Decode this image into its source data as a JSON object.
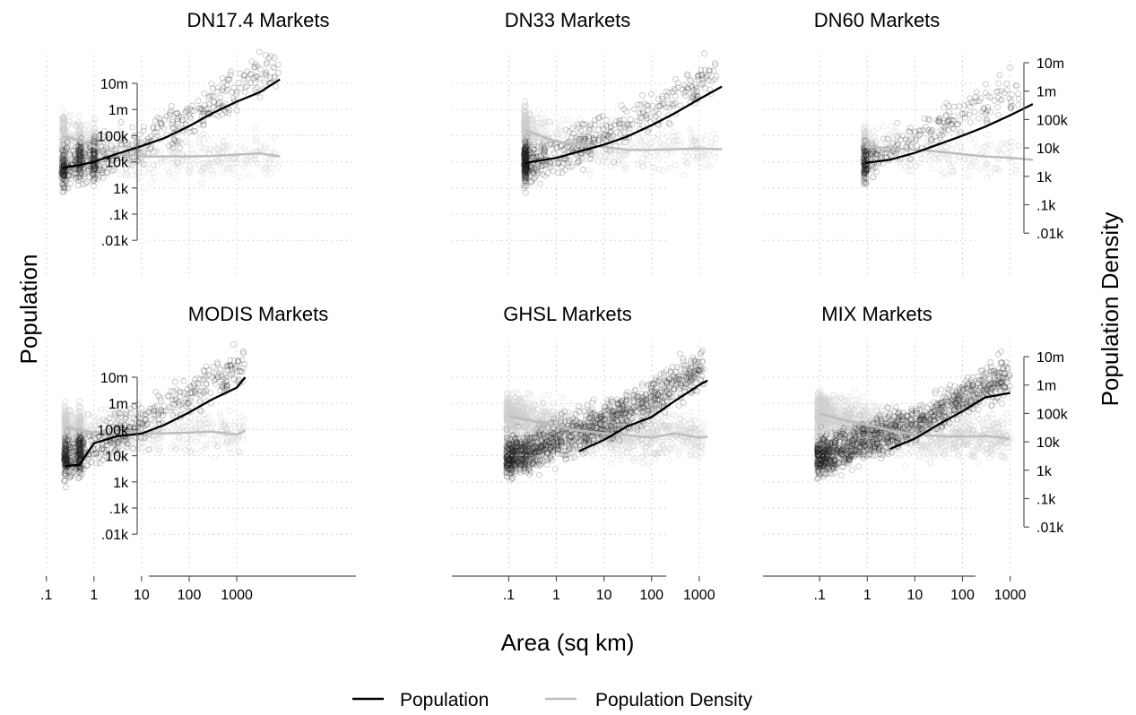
{
  "figure": {
    "ylabel_left": "Population",
    "ylabel_right": "Population Density",
    "xlabel": "Area (sq km)"
  },
  "legend": {
    "placement": "bottom-center",
    "items": [
      {
        "label": "Population",
        "color": "#000000"
      },
      {
        "label": "Population Density",
        "color": "#bdbdbd"
      }
    ]
  },
  "axes": {
    "y_ticks_left": [
      "10m",
      "1m",
      "100k",
      "10k",
      "1k",
      ".1k",
      ".01k"
    ],
    "y_ticks_right": [
      "10m",
      "1m",
      "100k",
      "10k",
      "1k",
      ".1k",
      ".01k"
    ],
    "x_ticks_col1": [
      ".1",
      "1",
      "10",
      "100",
      "1000"
    ],
    "x_ticks_col2": [
      ".1",
      "1",
      "10",
      "100",
      "1000"
    ],
    "x_ticks_col3": [
      ".1",
      "1",
      "10",
      "100",
      "1000"
    ]
  },
  "chart_data": [
    {
      "type": "scatter",
      "title": "DN17.4 Markets",
      "xscale": "log",
      "yscale": "log",
      "grid": true,
      "series": [
        {
          "name": "Population",
          "color": "#000000",
          "x": [
            0.22,
            0.5,
            1,
            3,
            10,
            30,
            100,
            300,
            1000,
            3000,
            8000
          ],
          "y": [
            6000,
            7500,
            10000,
            20000,
            40000,
            80000,
            230000,
            700000,
            2000000,
            4500000,
            14000000
          ]
        },
        {
          "name": "Population Density",
          "color": "#bdbdbd",
          "x": [
            0.22,
            0.5,
            1,
            3,
            10,
            30,
            100,
            300,
            1000,
            3000,
            8000
          ],
          "y": [
            26000,
            18000,
            11000,
            7000,
            5000,
            5000,
            5000,
            5200,
            5800,
            6400,
            5000
          ]
        }
      ]
    },
    {
      "type": "scatter",
      "title": "DN33 Markets",
      "xscale": "log",
      "yscale": "log",
      "grid": true,
      "series": [
        {
          "name": "Population",
          "color": "#000000",
          "x": [
            0.22,
            1,
            3,
            10,
            30,
            100,
            300,
            1000,
            3000
          ],
          "y": [
            9000,
            14000,
            25000,
            45000,
            90000,
            250000,
            700000,
            2500000,
            7500000
          ]
        },
        {
          "name": "Population Density",
          "color": "#bdbdbd",
          "x": [
            0.22,
            1,
            3,
            10,
            30,
            100,
            300,
            1000,
            3000
          ],
          "y": [
            42000,
            17000,
            13000,
            11000,
            8500,
            8500,
            9000,
            9500,
            9000
          ]
        }
      ]
    },
    {
      "type": "scatter",
      "title": "DN60 Markets",
      "xscale": "log",
      "yscale": "log",
      "grid": true,
      "series": [
        {
          "name": "Population",
          "color": "#000000",
          "x": [
            0.9,
            3,
            10,
            30,
            100,
            300,
            1000,
            3000
          ],
          "y": [
            9000,
            12000,
            22000,
            45000,
            100000,
            220000,
            600000,
            1600000
          ]
        },
        {
          "name": "Population Density",
          "color": "#bdbdbd",
          "x": [
            0.9,
            3,
            10,
            30,
            100,
            300,
            1000,
            3000
          ],
          "y": [
            11000,
            10000,
            8500,
            7500,
            6000,
            5000,
            4500,
            3800
          ]
        }
      ]
    },
    {
      "type": "scatter",
      "title": "MODIS Markets",
      "xscale": "log",
      "yscale": "log",
      "grid": true,
      "series": [
        {
          "name": "Population",
          "color": "#000000",
          "x": [
            0.25,
            0.5,
            1,
            3,
            10,
            30,
            100,
            300,
            1000,
            1500
          ],
          "y": [
            4000,
            4500,
            30000,
            55000,
            70000,
            150000,
            450000,
            1400000,
            4000000,
            10000000
          ]
        },
        {
          "name": "Population Density",
          "color": "#bdbdbd",
          "x": [
            0.25,
            0.5,
            1,
            3,
            10,
            30,
            100,
            300,
            1000,
            1500
          ],
          "y": [
            35000,
            25000,
            22000,
            21000,
            20000,
            20000,
            21000,
            23000,
            18000,
            25000
          ]
        }
      ]
    },
    {
      "type": "scatter",
      "title": "GHSL Markets",
      "xscale": "log",
      "yscale": "log",
      "grid": true,
      "series": [
        {
          "name": "Population",
          "color": "#000000",
          "x": [
            3,
            10,
            30,
            100,
            300,
            1000,
            1500
          ],
          "y": [
            15000,
            40000,
            130000,
            300000,
            1200000,
            5000000,
            7500000
          ]
        },
        {
          "name": "Population Density",
          "color": "#bdbdbd",
          "x": [
            0.1,
            0.3,
            1,
            3,
            10,
            30,
            100,
            300,
            1000,
            1500
          ],
          "y": [
            80000,
            55000,
            35000,
            25000,
            20000,
            17000,
            14000,
            20000,
            14000,
            15000
          ]
        }
      ]
    },
    {
      "type": "scatter",
      "title": "MIX Markets",
      "xscale": "log",
      "yscale": "log",
      "grid": true,
      "series": [
        {
          "name": "Population",
          "color": "#000000",
          "x": [
            3,
            10,
            30,
            100,
            300,
            1000
          ],
          "y": [
            18000,
            45000,
            150000,
            500000,
            1700000,
            2500000
          ]
        },
        {
          "name": "Population Density",
          "color": "#bdbdbd",
          "x": [
            0.1,
            0.3,
            1,
            3,
            10,
            30,
            100,
            300,
            1000
          ],
          "y": [
            100000,
            60000,
            40000,
            25000,
            18000,
            16000,
            15000,
            16000,
            13000
          ]
        }
      ]
    }
  ]
}
